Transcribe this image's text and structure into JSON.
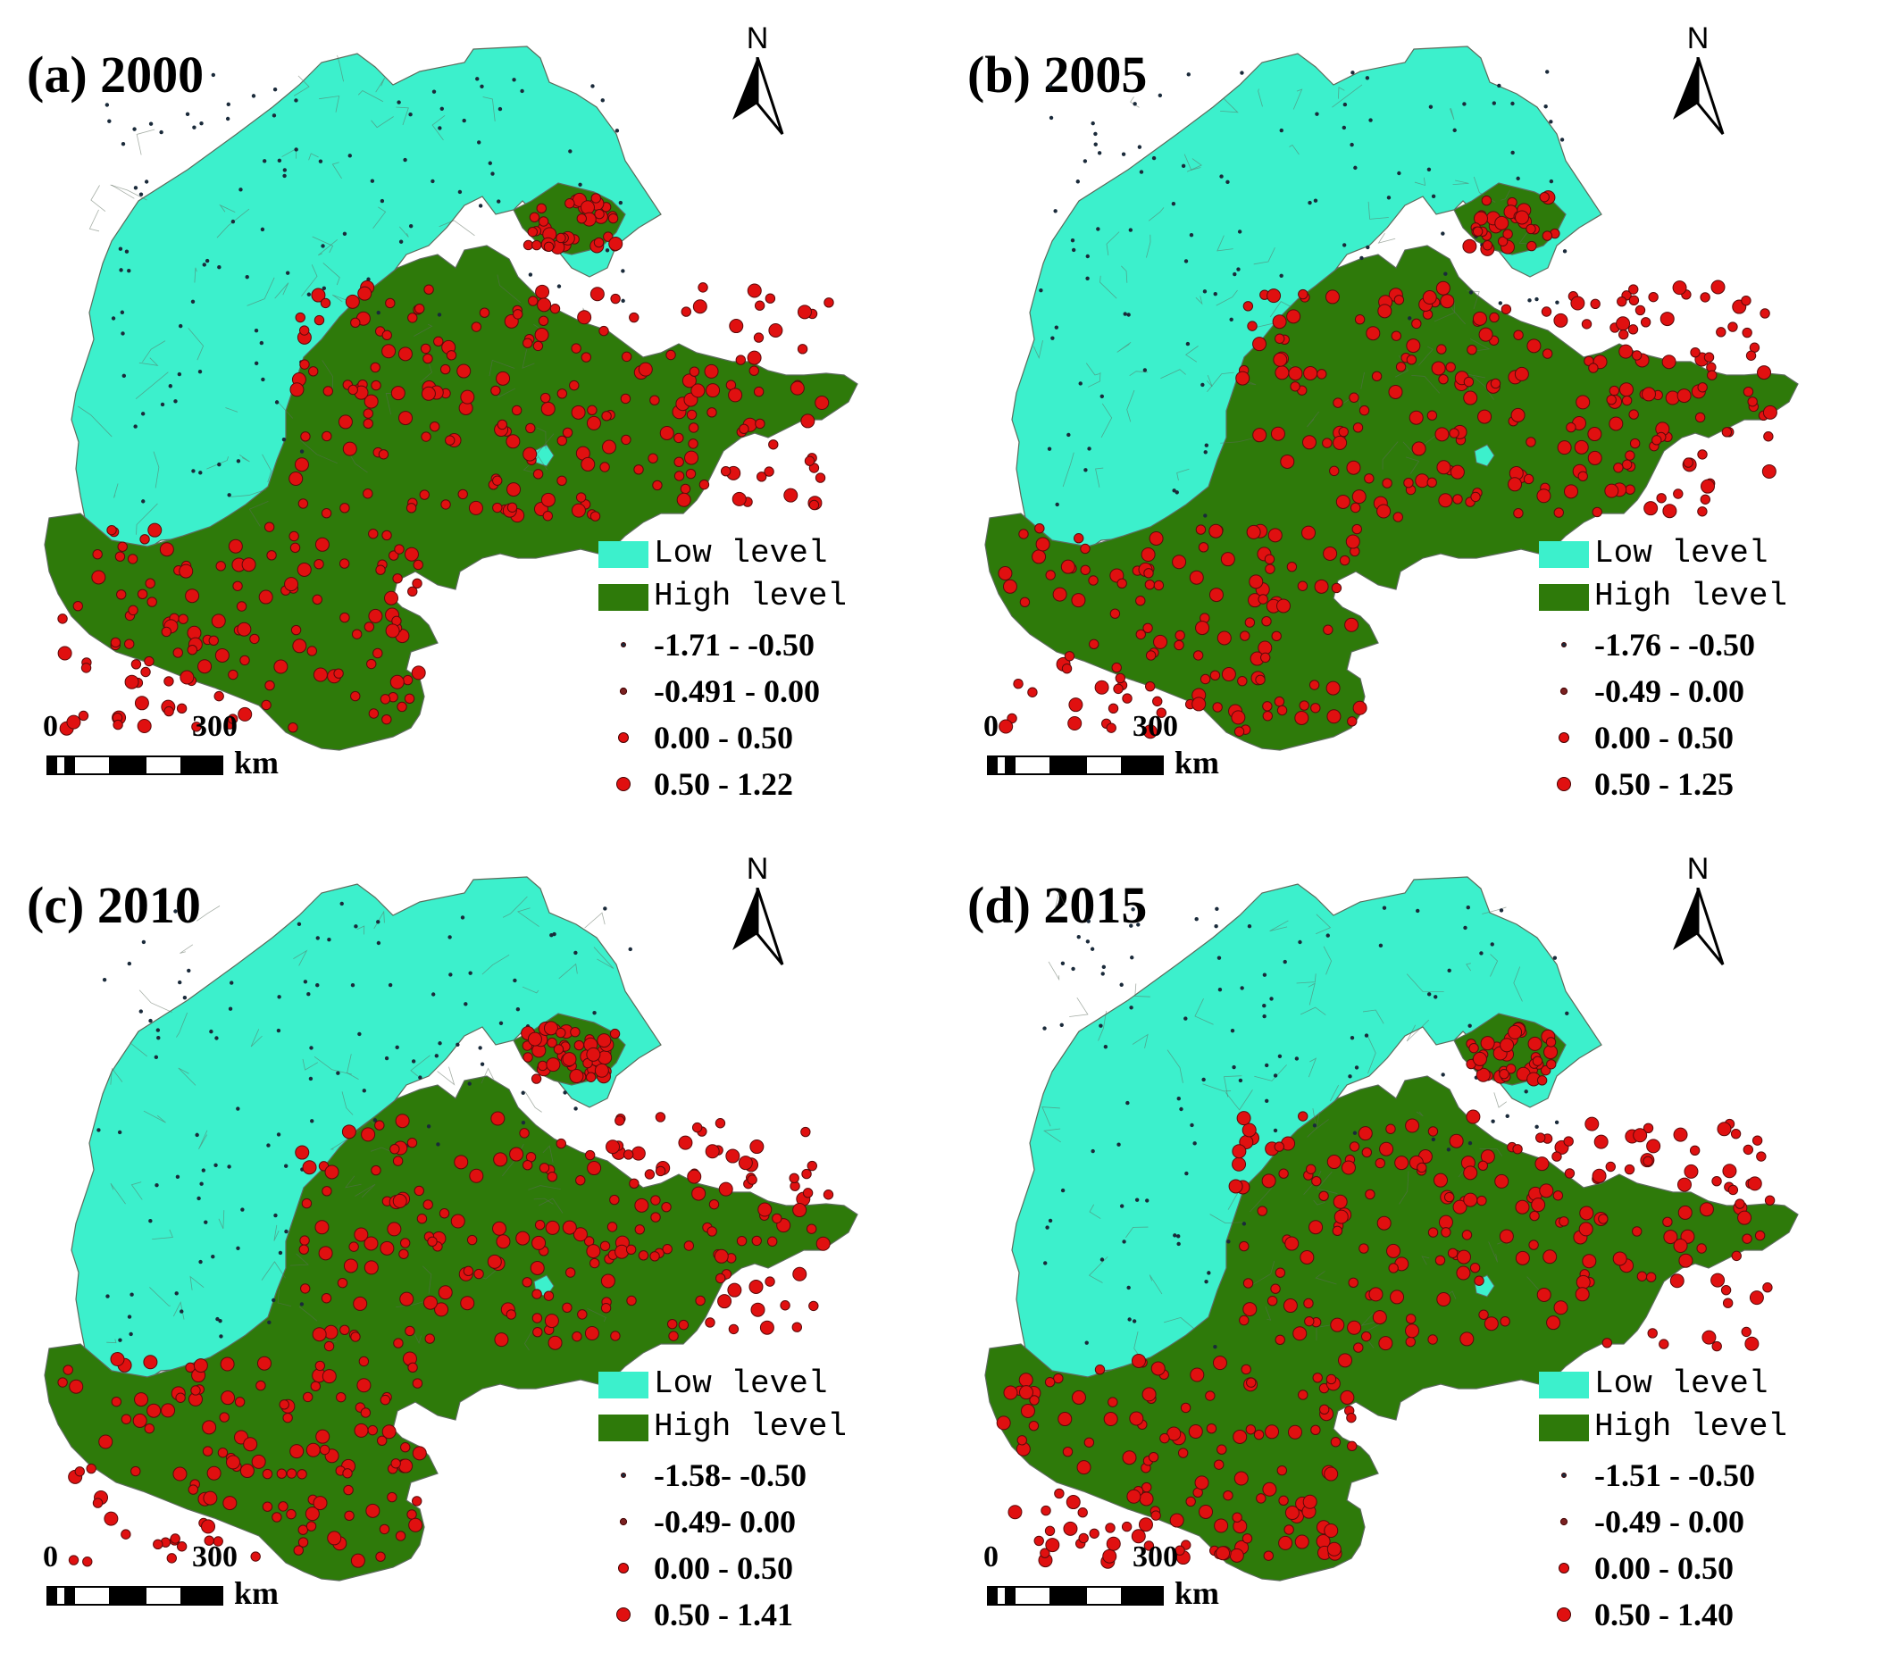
{
  "colors": {
    "low": "#3cf0cc",
    "high": "#2e7a0a",
    "dot": "#e01010",
    "boundary": "#5c6b5c"
  },
  "panels": [
    {
      "title": "(a) 2000",
      "north": "N",
      "legend": {
        "low_label": "Low level",
        "high_label": "High level",
        "classes": [
          "-1.71 - -0.50",
          "-0.491 - 0.00",
          "0.00 - 0.50",
          "0.50 - 1.22"
        ]
      },
      "scale": {
        "zero": "0",
        "mid": "300",
        "unit": "km"
      }
    },
    {
      "title": "(b) 2005",
      "north": "N",
      "legend": {
        "low_label": "Low level",
        "high_label": "High level",
        "classes": [
          "-1.76 - -0.50",
          "-0.49 - 0.00",
          "0.00 - 0.50",
          "0.50 - 1.25"
        ]
      },
      "scale": {
        "zero": "0",
        "mid": "300",
        "unit": "km"
      }
    },
    {
      "title": "(c) 2010",
      "north": "N",
      "legend": {
        "low_label": "Low level",
        "high_label": "High level",
        "classes": [
          "-1.58- -0.50",
          "-0.49- 0.00",
          "0.00 - 0.50",
          "0.50 - 1.41"
        ]
      },
      "scale": {
        "zero": "0",
        "mid": "300",
        "unit": "km"
      }
    },
    {
      "title": "(d) 2015",
      "north": "N",
      "legend": {
        "low_label": "Low level",
        "high_label": "High level",
        "classes": [
          "-1.51 - -0.50",
          "-0.49 - 0.00",
          "0.00 - 0.50",
          "0.50 - 1.40"
        ]
      },
      "scale": {
        "zero": "0",
        "mid": "300",
        "unit": "km"
      }
    }
  ]
}
